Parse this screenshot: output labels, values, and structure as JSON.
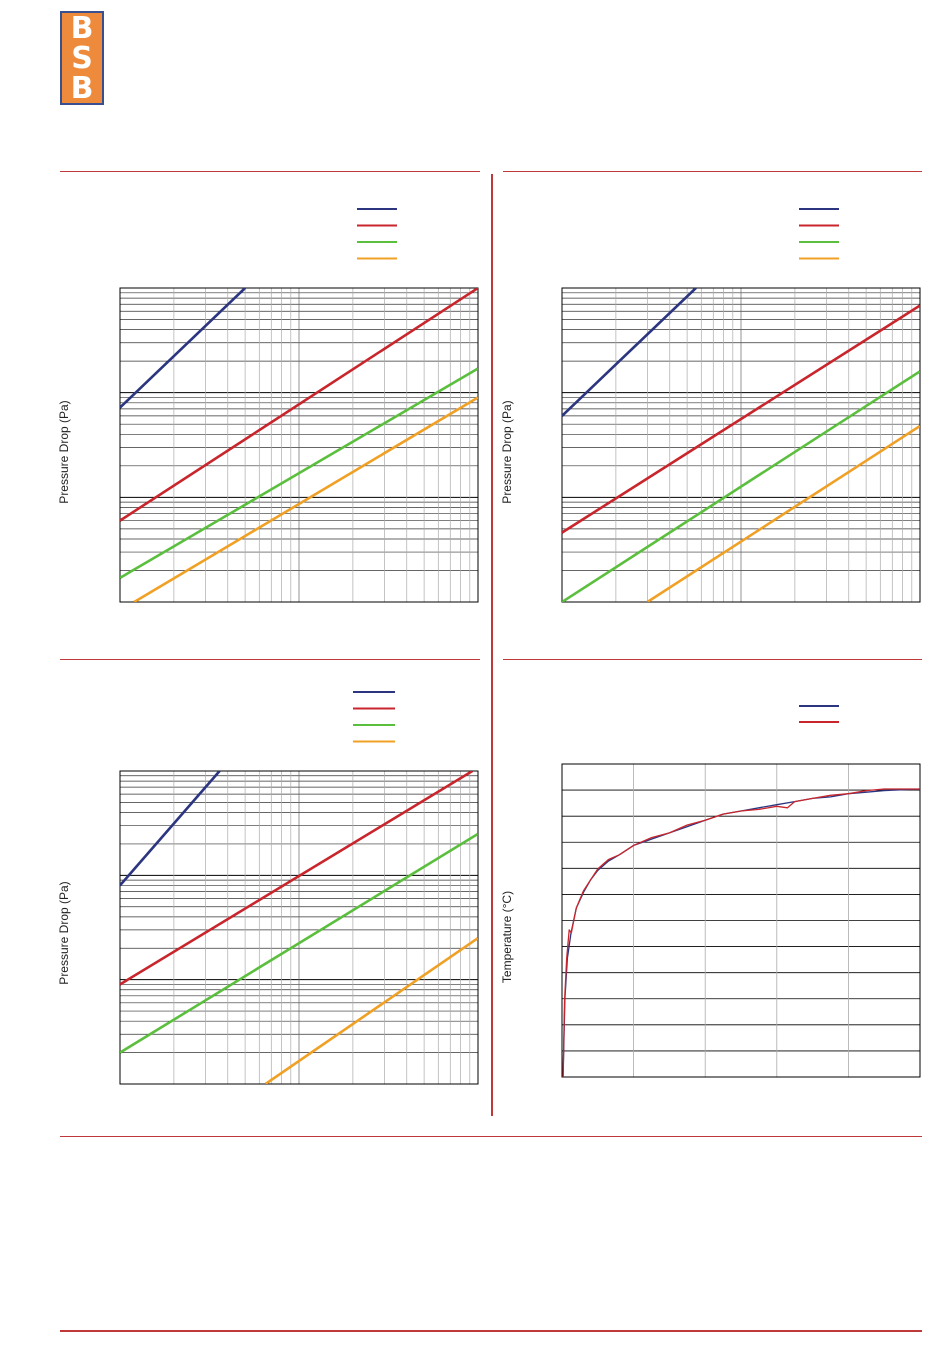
{
  "logo": {
    "letters": [
      "B",
      "S",
      "B"
    ],
    "background": "#ee8a3c",
    "border": "#3a4f8f",
    "letter_color": "#ffffff"
  },
  "colors": {
    "rule": "#c0393a",
    "blue": "#2b3580",
    "red": "#c8262c",
    "green": "#5bbf3e",
    "orange": "#f0a024",
    "grid": "#000000",
    "grid_minor": "#aaaaaa"
  },
  "chart_data": [
    {
      "type": "line",
      "ylabel": "Pressure Drop (Pa)",
      "xscale": "log",
      "yscale": "log",
      "xlim": [
        1,
        100
      ],
      "ylim": [
        1,
        1000
      ],
      "legend_position": "top-right",
      "grid": true,
      "series": [
        {
          "color": "blue",
          "points": [
            [
              1,
              72
            ],
            [
              5.0,
              1000
            ]
          ]
        },
        {
          "color": "red",
          "points": [
            [
              1,
              6.0
            ],
            [
              100,
              1000
            ]
          ]
        },
        {
          "color": "green",
          "points": [
            [
              1,
              1.7
            ],
            [
              100,
              170
            ]
          ]
        },
        {
          "color": "orange",
          "points": [
            [
              1.2,
              1.0
            ],
            [
              100,
              90
            ]
          ]
        }
      ]
    },
    {
      "type": "line",
      "ylabel": "Pressure Drop (Pa)",
      "xscale": "log",
      "yscale": "log",
      "xlim": [
        1,
        100
      ],
      "ylim": [
        1,
        1000
      ],
      "legend_position": "top-right",
      "grid": true,
      "series": [
        {
          "color": "blue",
          "points": [
            [
              1,
              60
            ],
            [
              5.6,
              1000
            ]
          ]
        },
        {
          "color": "red",
          "points": [
            [
              1,
              4.6
            ],
            [
              100,
              680
            ]
          ]
        },
        {
          "color": "green",
          "points": [
            [
              1,
              1.0
            ],
            [
              100,
              160
            ]
          ]
        },
        {
          "color": "orange",
          "points": [
            [
              3.0,
              1.0
            ],
            [
              100,
              48
            ]
          ]
        }
      ]
    },
    {
      "type": "line",
      "ylabel": "Pressure Drop (Pa)",
      "xscale": "log",
      "yscale": "log",
      "xlim": [
        1,
        100
      ],
      "ylim": [
        1,
        1000
      ],
      "legend_position": "top-right",
      "grid": true,
      "series": [
        {
          "color": "blue",
          "points": [
            [
              1,
              80
            ],
            [
              3.6,
              1000
            ]
          ]
        },
        {
          "color": "red",
          "points": [
            [
              1,
              9.0
            ],
            [
              93,
              1000
            ]
          ]
        },
        {
          "color": "green",
          "points": [
            [
              1,
              2.0
            ],
            [
              100,
              250
            ]
          ]
        },
        {
          "color": "orange",
          "points": [
            [
              6.5,
              1.0
            ],
            [
              100,
              25
            ]
          ]
        }
      ]
    },
    {
      "type": "line",
      "ylabel": "Temperature (°C)",
      "xlim": [
        0,
        100
      ],
      "ylim": [
        0,
        100
      ],
      "legend_position": "top-right",
      "grid": true,
      "series": [
        {
          "color": "blue",
          "points": [
            [
              0.3,
              0
            ],
            [
              0.8,
              25
            ],
            [
              1.5,
              38
            ],
            [
              2.5,
              46
            ],
            [
              4,
              54
            ],
            [
              6,
              59
            ],
            [
              8,
              63
            ],
            [
              10,
              66
            ],
            [
              13,
              69
            ],
            [
              16,
              71
            ],
            [
              20,
              74
            ],
            [
              25,
              76
            ],
            [
              30,
              78
            ],
            [
              35,
              80
            ],
            [
              40,
              82
            ],
            [
              45,
              84
            ],
            [
              50,
              85
            ],
            [
              55,
              86
            ],
            [
              60,
              87
            ],
            [
              65,
              88
            ],
            [
              70,
              89
            ],
            [
              75,
              89.5
            ],
            [
              80,
              90.5
            ],
            [
              85,
              91
            ],
            [
              90,
              91.5
            ],
            [
              100,
              92
            ]
          ]
        },
        {
          "color": "red",
          "points": [
            [
              0.3,
              0
            ],
            [
              0.7,
              24
            ],
            [
              1.3,
              38
            ],
            [
              2.0,
              47
            ],
            [
              2.6,
              46
            ],
            [
              4,
              54
            ],
            [
              6,
              59.5
            ],
            [
              8,
              63
            ],
            [
              10,
              66.5
            ],
            [
              13,
              69.5
            ],
            [
              16,
              71
            ],
            [
              20,
              74
            ],
            [
              25,
              76.5
            ],
            [
              30,
              78
            ],
            [
              35,
              80.5
            ],
            [
              40,
              82
            ],
            [
              45,
              84
            ],
            [
              50,
              85
            ],
            [
              55,
              85.5
            ],
            [
              60,
              86.5
            ],
            [
              63,
              86
            ],
            [
              65,
              88
            ],
            [
              70,
              89
            ],
            [
              75,
              90
            ],
            [
              80,
              90.5
            ],
            [
              85,
              91.5
            ],
            [
              90,
              92
            ],
            [
              100,
              92
            ]
          ]
        }
      ]
    }
  ]
}
